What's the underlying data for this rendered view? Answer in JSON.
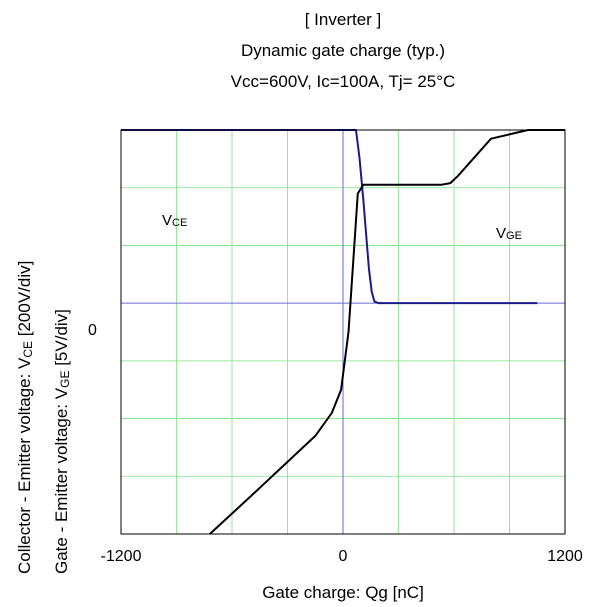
{
  "chart_data": {
    "type": "line",
    "section_label": "[ Inverter ]",
    "title": "Dynamic gate charge  (typ.)",
    "subtitle": "Vcc=600V,   Ic=100A,   Tj= 25°C",
    "xlabel": "Gate charge: Qg [nC]",
    "ylabel_outer": {
      "prefix": "Collector - Emitter voltage:  V",
      "sub": "CE",
      "suffix": " [200V/div]"
    },
    "ylabel_inner": {
      "prefix": "Gate - Emitter voltage:     V",
      "sub": "GE",
      "suffix": " [5V/div]"
    },
    "x_ticks": [
      "-1200",
      "0",
      "1200"
    ],
    "y_ticks": [
      "0"
    ],
    "xlim": [
      -1200,
      1200
    ],
    "ylim_div": [
      -4,
      3
    ],
    "grid": true,
    "colors": {
      "vce": "#1a1a8c",
      "vge": "#000000",
      "grid_minor": "#7fe07f",
      "axis_zero": "#6a6ad8",
      "frame": "#000000"
    },
    "series": [
      {
        "name": "VCE",
        "label_main": "V",
        "label_sub": "CE",
        "color": "#1a1a8c",
        "x": [
          -1200,
          70,
          90,
          110,
          125,
          140,
          155,
          170,
          190,
          220,
          400,
          700,
          1000,
          1050
        ],
        "y": [
          3.0,
          3.0,
          2.5,
          1.8,
          1.2,
          0.6,
          0.2,
          0.03,
          0.0,
          0.0,
          0.0,
          0.0,
          0.0,
          0.0
        ]
      },
      {
        "name": "VGE",
        "label_main": "V",
        "label_sub": "GE",
        "color": "#000000",
        "x": [
          -720,
          -500,
          -300,
          -150,
          -60,
          -10,
          30,
          80,
          110,
          200,
          400,
          530,
          580,
          620,
          800,
          1000,
          1200
        ],
        "y": [
          -4.0,
          -3.35,
          -2.75,
          -2.3,
          -1.9,
          -1.5,
          -0.5,
          1.9,
          2.05,
          2.05,
          2.05,
          2.05,
          2.08,
          2.2,
          2.85,
          3.55,
          4.2
        ]
      }
    ]
  }
}
